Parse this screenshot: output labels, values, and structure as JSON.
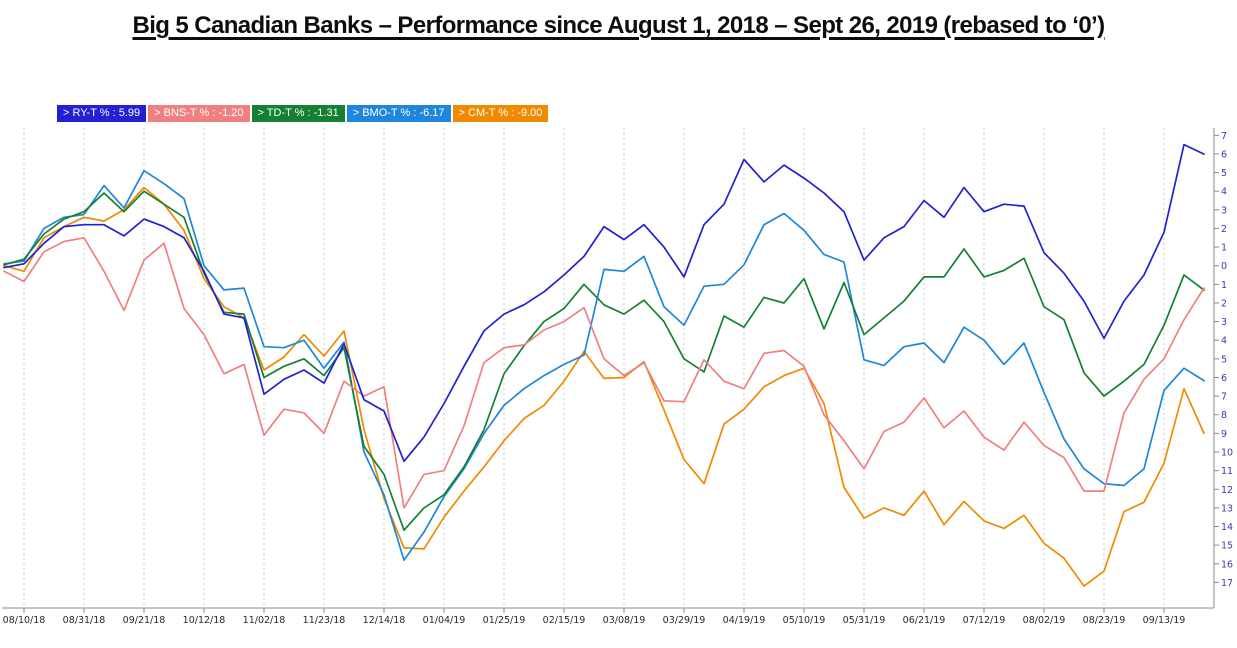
{
  "title": "Big 5 Canadian Banks – Performance since August 1, 2018 – Sept 26, 2019 (rebased to ‘0’)",
  "chart_data": {
    "type": "line",
    "title": "Big 5 Canadian Banks – Performance since August 1, 2018 – Sept 26, 2019 (rebased to ‘0’)",
    "xlabel": "",
    "ylabel": "",
    "ylim": [
      -17.5,
      7.5
    ],
    "y_ticks": [
      7,
      6,
      5,
      4,
      3,
      2,
      1,
      0,
      -1,
      -2,
      -3,
      -4,
      -5,
      -6,
      -7,
      -8,
      -9,
      -10,
      -11,
      -12,
      -13,
      -14,
      -15,
      -16,
      -17
    ],
    "y_tick_label_style": "unsigned",
    "grid": "vertical-dashed",
    "legend_position": "top-left",
    "points_per_x_tick": 3,
    "first_x_tick_at_point": 1,
    "x_tick_labels": [
      "08/10/18",
      "08/31/18",
      "09/21/18",
      "10/12/18",
      "11/02/18",
      "11/23/18",
      "12/14/18",
      "01/04/19",
      "01/25/19",
      "02/15/19",
      "03/08/19",
      "03/29/19",
      "04/19/19",
      "05/10/19",
      "05/31/19",
      "06/21/19",
      "07/12/19",
      "08/02/19",
      "08/23/19",
      "09/13/19"
    ],
    "colors": {
      "RY": "#2121D1",
      "BNS": "#F08080",
      "TD": "#158032",
      "BMO": "#1E86DB",
      "CM": "#F08A00",
      "y_tick_text": "#3B3BA8",
      "x_tick_text": "#2a2a2a",
      "axis": "#8a8a8a",
      "gridline": "#c9c9c9"
    },
    "series": [
      {
        "name": "RY",
        "legend_text": "> RY-T % : 5.99",
        "final_value": 5.99,
        "color": "#2121D1",
        "values": [
          -0.1,
          0.1,
          1.2,
          2.1,
          2.2,
          2.2,
          1.6,
          2.5,
          2.1,
          1.5,
          -0.3,
          -2.6,
          -2.8,
          -6.9,
          -6.1,
          -5.6,
          -6.3,
          -4.2,
          -7.2,
          -7.8,
          -10.5,
          -9.2,
          -7.4,
          -5.4,
          -3.5,
          -2.6,
          -2.1,
          -1.4,
          -0.5,
          0.5,
          2.1,
          1.4,
          2.2,
          1.0,
          -0.6,
          2.2,
          3.3,
          5.7,
          4.5,
          5.4,
          4.7,
          3.9,
          2.9,
          0.3,
          1.5,
          2.1,
          3.5,
          2.6,
          4.2,
          2.9,
          3.3,
          3.2,
          0.7,
          -0.4,
          -1.9,
          -3.9,
          -1.9,
          -0.5,
          1.8,
          6.5,
          5.99
        ]
      },
      {
        "name": "BNS",
        "legend_text": "> BNS-T % : -1.20",
        "final_value": -1.2,
        "color": "#F08080",
        "values": [
          -0.3,
          -0.85,
          0.75,
          1.3,
          1.5,
          -0.3,
          -2.4,
          0.3,
          1.2,
          -2.3,
          -3.7,
          -5.8,
          -5.3,
          -9.1,
          -7.7,
          -7.9,
          -9.0,
          -6.2,
          -7.0,
          -6.5,
          -13.0,
          -11.2,
          -11.0,
          -8.6,
          -5.2,
          -4.4,
          -4.25,
          -3.45,
          -3.0,
          -2.25,
          -5.0,
          -5.9,
          -5.2,
          -7.25,
          -7.3,
          -5.05,
          -6.2,
          -6.6,
          -4.7,
          -4.55,
          -5.4,
          -8.0,
          -9.4,
          -10.9,
          -8.9,
          -8.4,
          -7.1,
          -8.7,
          -7.8,
          -9.2,
          -9.9,
          -8.4,
          -9.65,
          -10.3,
          -12.1,
          -12.1,
          -7.9,
          -6.1,
          -5.0,
          -2.9,
          -1.2
        ]
      },
      {
        "name": "TD",
        "legend_text": "> TD-T % : -1.31",
        "final_value": -1.31,
        "color": "#158032",
        "values": [
          0.05,
          0.35,
          1.7,
          2.5,
          2.9,
          3.9,
          2.9,
          4.0,
          3.3,
          2.6,
          -0.4,
          -2.5,
          -2.6,
          -6.0,
          -5.4,
          -5.0,
          -5.9,
          -4.4,
          -9.7,
          -11.2,
          -14.2,
          -13.0,
          -12.3,
          -10.8,
          -8.8,
          -5.8,
          -4.3,
          -3.0,
          -2.3,
          -1.0,
          -2.1,
          -2.6,
          -1.85,
          -3.0,
          -5.0,
          -5.7,
          -2.7,
          -3.3,
          -1.7,
          -2.0,
          -0.7,
          -3.4,
          -0.9,
          -3.7,
          -2.8,
          -1.9,
          -0.6,
          -0.6,
          0.9,
          -0.6,
          -0.25,
          0.4,
          -2.2,
          -2.9,
          -5.75,
          -7.0,
          -6.2,
          -5.3,
          -3.2,
          -0.5,
          -1.31
        ]
      },
      {
        "name": "BMO",
        "legend_text": "> BMO-T % : -6.17",
        "final_value": -6.17,
        "color": "#1E86DB",
        "values": [
          0.1,
          0.25,
          2.0,
          2.6,
          2.75,
          4.3,
          3.1,
          5.1,
          4.4,
          3.6,
          0.0,
          -1.3,
          -1.2,
          -4.35,
          -4.4,
          -4.0,
          -5.5,
          -4.1,
          -10.0,
          -12.3,
          -15.8,
          -14.3,
          -12.4,
          -10.9,
          -9.0,
          -7.5,
          -6.6,
          -5.9,
          -5.3,
          -4.8,
          -0.2,
          -0.3,
          0.5,
          -2.2,
          -3.2,
          -1.1,
          -1.0,
          0.05,
          2.2,
          2.8,
          1.9,
          0.6,
          0.2,
          -5.05,
          -5.35,
          -4.35,
          -4.15,
          -5.2,
          -3.3,
          -4.0,
          -5.3,
          -4.15,
          -6.8,
          -9.3,
          -10.9,
          -11.7,
          -11.8,
          -10.9,
          -6.7,
          -5.5,
          -6.17
        ]
      },
      {
        "name": "CM",
        "legend_text": "> CM-T % : -9.00",
        "final_value": -9.0,
        "color": "#F08A00",
        "values": [
          0.0,
          -0.3,
          1.5,
          2.1,
          2.6,
          2.4,
          3.0,
          4.2,
          3.3,
          1.9,
          -0.7,
          -2.2,
          -2.8,
          -5.6,
          -4.9,
          -3.7,
          -4.85,
          -3.5,
          -8.8,
          -12.5,
          -15.15,
          -15.2,
          -13.5,
          -12.1,
          -10.8,
          -9.4,
          -8.2,
          -7.5,
          -6.2,
          -4.6,
          -6.05,
          -6.0,
          -5.15,
          -7.75,
          -10.4,
          -11.7,
          -8.5,
          -7.7,
          -6.5,
          -5.9,
          -5.5,
          -7.4,
          -11.9,
          -13.55,
          -13.0,
          -13.4,
          -12.1,
          -13.9,
          -12.65,
          -13.7,
          -14.1,
          -13.4,
          -14.9,
          -15.7,
          -17.2,
          -16.4,
          -13.2,
          -12.7,
          -10.6,
          -6.6,
          -9.0
        ]
      }
    ]
  }
}
